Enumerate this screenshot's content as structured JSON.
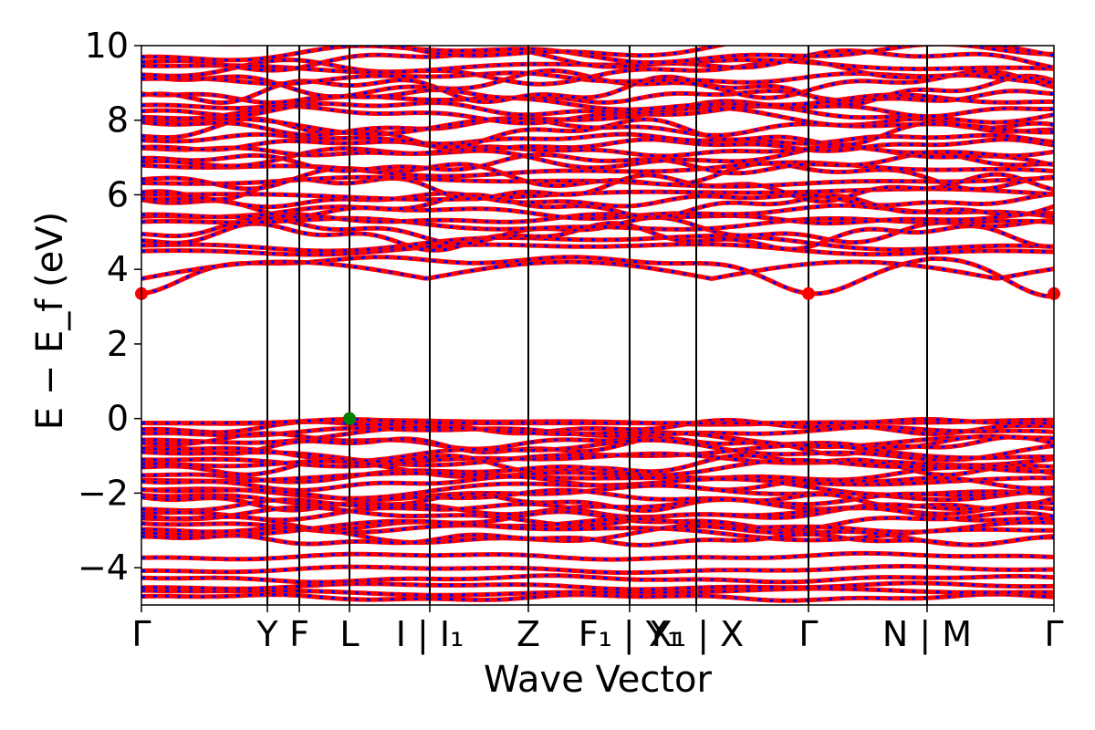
{
  "chart_data": {
    "type": "line",
    "xlabel": "Wave Vector",
    "ylabel": "E − E_f (eV)",
    "ylim": [
      -5,
      10
    ],
    "yticks": [
      -4,
      -2,
      0,
      2,
      4,
      6,
      8,
      10
    ],
    "ytick_labels": [
      "−4",
      "−2",
      "0",
      "2",
      "4",
      "6",
      "8",
      "10"
    ],
    "x_range": [
      0,
      1
    ],
    "kpoint_labels": [
      {
        "label": "Γ",
        "x": 0.0
      },
      {
        "label": "Y",
        "x": 0.138
      },
      {
        "label": "F",
        "x": 0.173
      },
      {
        "label": "L",
        "x": 0.228
      },
      {
        "label": "I | I₁",
        "x": 0.316
      },
      {
        "label": "Z",
        "x": 0.424
      },
      {
        "label": "F₁ | Y₁",
        "x": 0.535
      },
      {
        "label": "X₁ | X",
        "x": 0.608
      },
      {
        "label": "Γ",
        "x": 0.731
      },
      {
        "label": "N | M",
        "x": 0.861
      },
      {
        "label": "Γ",
        "x": 1.0
      }
    ],
    "series": [
      {
        "color": "#ff0000",
        "style": "solid"
      },
      {
        "color": "#0000ff",
        "style": "dotted"
      }
    ],
    "valence_band_max": {
      "x": 0.228,
      "y": 0.0,
      "color": "#008000"
    },
    "conduction_band_min": [
      {
        "x": 0.0,
        "y": 3.35,
        "color": "#ff0000"
      },
      {
        "x": 0.731,
        "y": 3.35,
        "color": "#ff0000"
      },
      {
        "x": 1.0,
        "y": 3.35,
        "color": "#ff0000"
      }
    ],
    "band_levels": {
      "valence_lower": [
        -4.8,
        -4.65,
        -4.5,
        -4.3,
        -4.05,
        -3.7
      ],
      "valence_main_top": -0.1,
      "valence_main_bottom": -3.25,
      "conduction_main_bottom": 4.55,
      "conduction_main_top": 9.95,
      "conduction_lowest": 3.35
    }
  }
}
